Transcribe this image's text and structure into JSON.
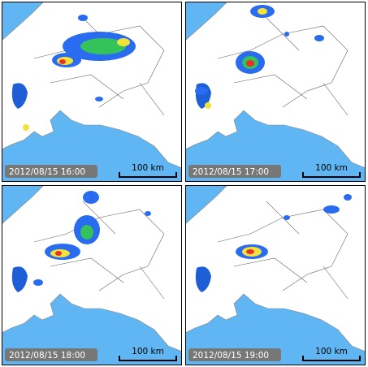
{
  "panels": [
    {
      "timestamp": "2012/08/15 16:00",
      "scale_label": "100 km"
    },
    {
      "timestamp": "2012/08/15 17:00",
      "scale_label": "100 km"
    },
    {
      "timestamp": "2012/08/15 18:00",
      "scale_label": "100 km"
    },
    {
      "timestamp": "2012/08/15 19:00",
      "scale_label": "100 km"
    }
  ]
}
